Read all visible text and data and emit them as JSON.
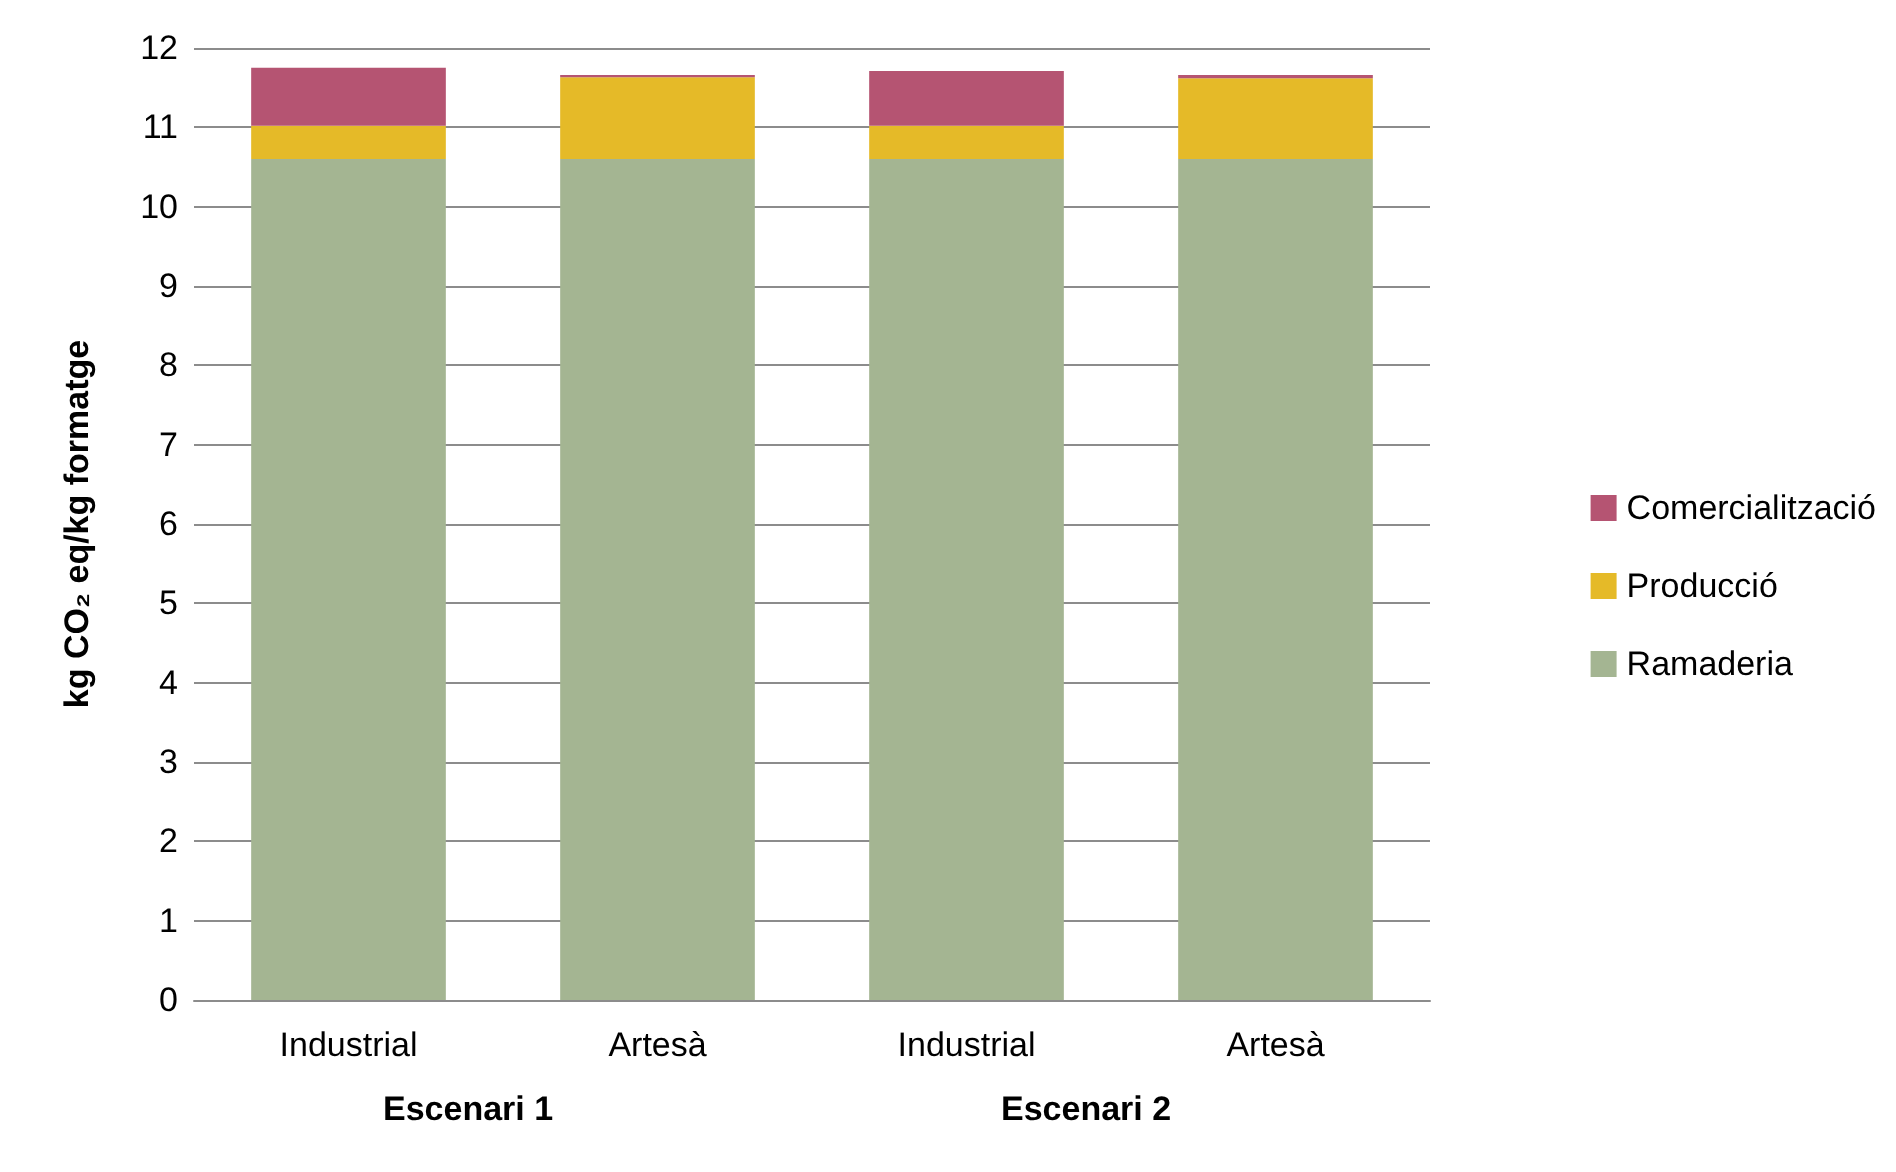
{
  "chart_data": {
    "type": "bar",
    "stacked": true,
    "categories": [
      "Industrial",
      "Artesà",
      "Industrial",
      "Artesà"
    ],
    "series": [
      {
        "name": "Ramaderia",
        "color": "#a4b592",
        "values": [
          10.6,
          10.6,
          10.6,
          10.6
        ]
      },
      {
        "name": "Producció",
        "color": "#e5ba28",
        "values": [
          0.42,
          1.03,
          0.42,
          1.02
        ]
      },
      {
        "name": "Comercialització",
        "color": "#b55472",
        "values": [
          0.73,
          0.03,
          0.69,
          0.04
        ]
      }
    ],
    "ylabel": "kg CO₂ eq/kg formatge",
    "ylim": [
      0,
      12
    ],
    "yticks": [
      0,
      1,
      2,
      3,
      4,
      5,
      6,
      7,
      8,
      9,
      10,
      11,
      12
    ],
    "annotations": [
      "Escenari 1",
      "Escenari 2"
    ],
    "grid": "y",
    "legend": "right"
  }
}
